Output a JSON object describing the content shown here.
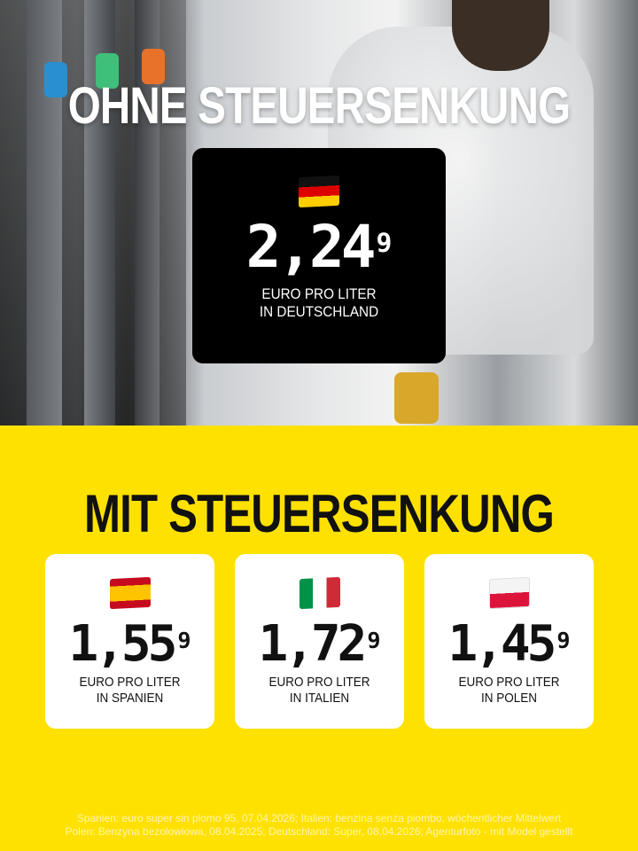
{
  "hero": {
    "title": "OHNE STEUERSENKUNG",
    "germany": {
      "flag": "flag-germany",
      "price_main": "2,24",
      "price_sup": "9",
      "unit": "EURO PRO LITER",
      "country": "IN DEUTSCHLAND"
    }
  },
  "section": {
    "title": "MIT STEUERSENKUNG",
    "cards": [
      {
        "flag": "flag-spain",
        "price_main": "1,55",
        "price_sup": "9",
        "unit": "EURO PRO LITER",
        "country": "IN SPANIEN"
      },
      {
        "flag": "flag-italy",
        "price_main": "1,72",
        "price_sup": "9",
        "unit": "EURO PRO LITER",
        "country": "IN ITALIEN"
      },
      {
        "flag": "flag-poland",
        "price_main": "1,45",
        "price_sup": "9",
        "unit": "EURO PRO LITER",
        "country": "IN POLEN"
      }
    ]
  },
  "footer": {
    "line1": "Spanien: euro super sin plomo 95, 07.04.2026; Italien: benzina senza piombo, wöchentlicher Mittelwert",
    "line2": "Polen: Benzyna bezolowiowa, 08.04.2025; Deutschland: Super, 08.04.2026; Agenturfoto - mit Model gestellt"
  },
  "colors": {
    "yellow": "#ffe100",
    "black": "#000000",
    "white": "#ffffff"
  }
}
